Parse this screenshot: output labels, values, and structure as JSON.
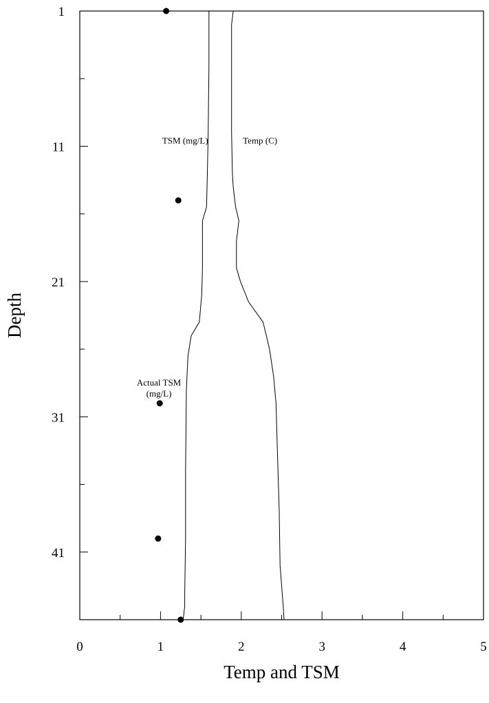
{
  "chart_data": {
    "type": "line",
    "title": "",
    "xlabel": "Temp and TSM",
    "ylabel": "Depth",
    "xlim": [
      0,
      5
    ],
    "ylim": [
      1,
      46
    ],
    "y_inverted": true,
    "x_ticks": [
      "0",
      "1",
      "2",
      "3",
      "4",
      "5"
    ],
    "y_ticks": [
      "1",
      "11",
      "21",
      "31",
      "41"
    ],
    "grid": false,
    "legend": "none",
    "series": [
      {
        "name": "TSM (mg/L)",
        "points": [
          [
            1.6,
            1
          ],
          [
            1.6,
            5
          ],
          [
            1.59,
            10
          ],
          [
            1.58,
            13
          ],
          [
            1.57,
            15.5
          ],
          [
            1.52,
            16.5
          ],
          [
            1.52,
            20
          ],
          [
            1.51,
            22
          ],
          [
            1.48,
            24
          ],
          [
            1.38,
            25
          ],
          [
            1.34,
            26.5
          ],
          [
            1.32,
            29
          ],
          [
            1.31,
            35
          ],
          [
            1.31,
            40
          ],
          [
            1.3,
            44
          ],
          [
            1.3,
            45
          ],
          [
            1.28,
            46
          ]
        ]
      },
      {
        "name": "Temp (C)",
        "points": [
          [
            1.9,
            1
          ],
          [
            1.88,
            2
          ],
          [
            1.88,
            10
          ],
          [
            1.89,
            13
          ],
          [
            1.9,
            14
          ],
          [
            1.93,
            15.5
          ],
          [
            1.97,
            16.5
          ],
          [
            1.94,
            18
          ],
          [
            1.94,
            20
          ],
          [
            1.99,
            21
          ],
          [
            2.09,
            22.5
          ],
          [
            2.27,
            24
          ],
          [
            2.35,
            26
          ],
          [
            2.4,
            28
          ],
          [
            2.43,
            30
          ],
          [
            2.45,
            34
          ],
          [
            2.47,
            38
          ],
          [
            2.48,
            42
          ],
          [
            2.52,
            45
          ],
          [
            2.53,
            46
          ]
        ]
      },
      {
        "name": "Actual TSM (mg/L)",
        "markers": true,
        "points": [
          [
            1.07,
            1
          ],
          [
            1.22,
            15
          ],
          [
            0.99,
            30
          ],
          [
            0.97,
            40
          ],
          [
            1.25,
            46
          ]
        ]
      }
    ],
    "annotations": [
      {
        "text": "TSM (mg/L)",
        "x": 1.59,
        "y": 10.8,
        "anchor": "end"
      },
      {
        "text": "Temp (C)",
        "x": 2.02,
        "y": 10.8,
        "anchor": "start"
      },
      {
        "text": "Actual TSM",
        "x": 0.98,
        "y": 28.7,
        "anchor": "middle"
      },
      {
        "text": "(mg/L)",
        "x": 0.98,
        "y": 29.5,
        "anchor": "middle"
      }
    ],
    "colors": {
      "line": "#000000",
      "marker": "#000000",
      "axis": "#000000"
    }
  }
}
